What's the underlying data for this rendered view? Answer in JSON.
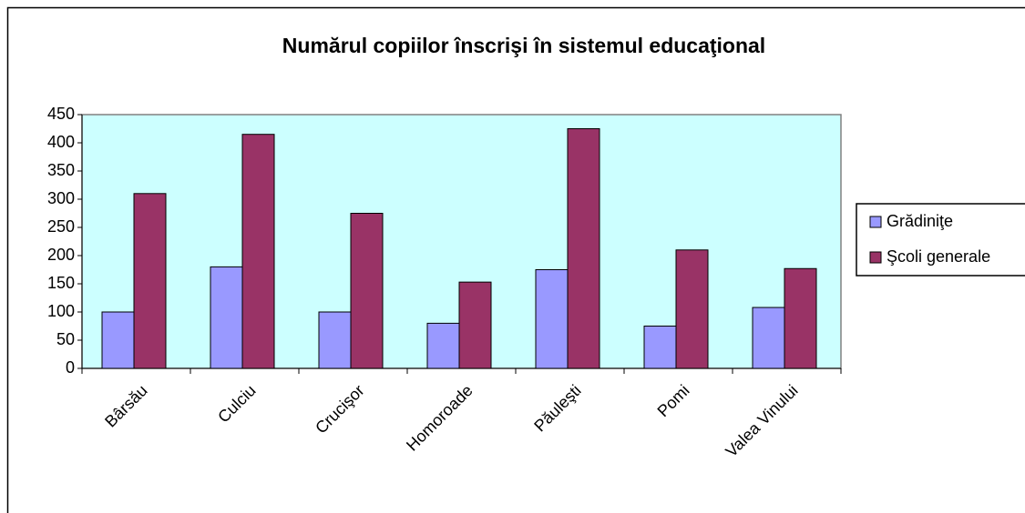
{
  "chart_data": {
    "type": "bar",
    "title": "Numărul copiilor înscrişi în sistemul educaţional",
    "categories": [
      "Bârsău",
      "Culciu",
      "Crucişor",
      "Homoroade",
      "Păuleşti",
      "Pomi",
      "Valea Vinului"
    ],
    "series": [
      {
        "name": "Grădiniţe",
        "color": "#9999ff",
        "values": [
          100,
          180,
          100,
          80,
          175,
          75,
          108
        ]
      },
      {
        "name": "Şcoli generale",
        "color": "#993366",
        "values": [
          310,
          415,
          275,
          153,
          425,
          210,
          177
        ]
      }
    ],
    "ylim": [
      0,
      450
    ],
    "yticks": [
      0,
      50,
      100,
      150,
      200,
      250,
      300,
      350,
      400,
      450
    ],
    "plot_background": "#ccffff",
    "legend": "right"
  }
}
